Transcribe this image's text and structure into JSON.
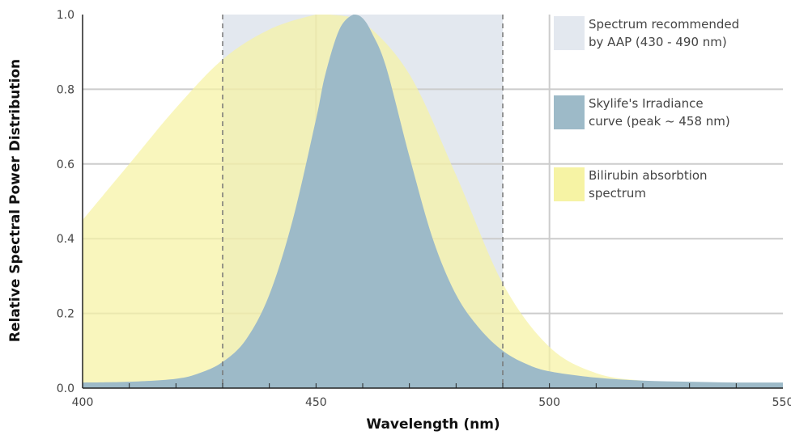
{
  "chart_data": {
    "type": "area",
    "xlabel": "Wavelength (nm)",
    "ylabel": "Relative Spectral Power Distribution",
    "xlim": [
      400,
      550
    ],
    "ylim": [
      0,
      1.0
    ],
    "x_ticks": [
      "400",
      "450",
      "500",
      "550"
    ],
    "y_ticks": [
      "0.0",
      "0.2",
      "0.4",
      "0.6",
      "0.8",
      "1.0"
    ],
    "grid": true,
    "legend_position": "right",
    "band": {
      "name_lines": [
        "Spectrum recommended",
        "by AAP (430 - 490 nm)"
      ],
      "x_start": 430,
      "x_end": 490,
      "color": "#e3e8ef"
    },
    "series": [
      {
        "name_lines": [
          "Bilirubin absorbtion",
          "spectrum"
        ],
        "color": "#f6f3a4",
        "x": [
          400,
          410,
          420,
          430,
          440,
          450,
          453,
          460,
          470,
          480,
          490,
          500,
          510,
          520,
          530,
          540,
          550
        ],
        "y": [
          0.45,
          0.6,
          0.75,
          0.88,
          0.96,
          1.0,
          1.0,
          0.98,
          0.84,
          0.57,
          0.28,
          0.11,
          0.04,
          0.02,
          0.015,
          0.01,
          0.01
        ]
      },
      {
        "name_lines": [
          "Skylife's Irradiance",
          "curve (peak ~ 458 nm)"
        ],
        "color": "#9dbac8",
        "x": [
          400,
          410,
          420,
          425,
          430,
          435,
          440,
          445,
          450,
          452,
          455,
          458,
          460,
          462,
          465,
          470,
          475,
          480,
          485,
          490,
          495,
          500,
          510,
          520,
          530,
          540,
          550
        ],
        "y": [
          0.015,
          0.017,
          0.025,
          0.04,
          0.07,
          0.13,
          0.25,
          0.45,
          0.72,
          0.84,
          0.96,
          1.0,
          0.99,
          0.95,
          0.86,
          0.62,
          0.4,
          0.25,
          0.16,
          0.1,
          0.065,
          0.045,
          0.028,
          0.02,
          0.017,
          0.015,
          0.015
        ]
      }
    ]
  }
}
